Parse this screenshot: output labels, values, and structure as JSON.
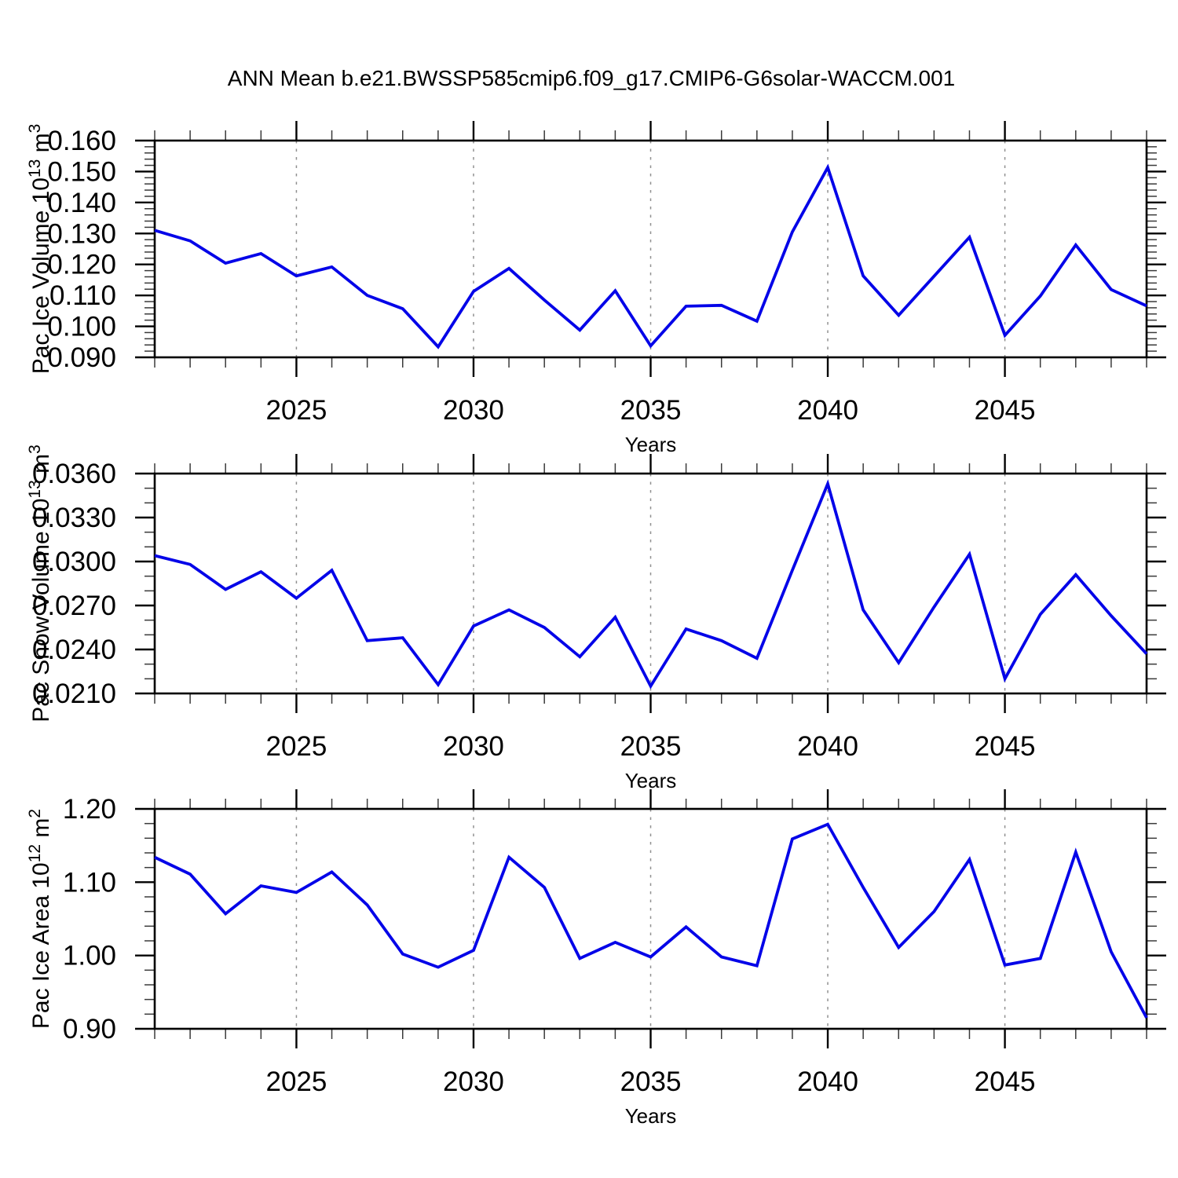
{
  "page": {
    "title": "ANN Mean b.e21.BWSSP585cmip6.f09_g17.CMIP6-G6solar-WACCM.001",
    "background_color": "#ffffff",
    "line_color": "#0404e8",
    "grid_color": "#909090",
    "axis_color": "#000000",
    "minor_tick_color": "#3a3a3a"
  },
  "chart_data": [
    {
      "type": "line",
      "ylabel_pre": "Pac Ice Volume 10",
      "ylabel_sup1": "13",
      "ylabel_mid": " m",
      "ylabel_sup2": "3",
      "xlabel": "Years",
      "x": [
        2021,
        2022,
        2023,
        2024,
        2025,
        2026,
        2027,
        2028,
        2029,
        2030,
        2031,
        2032,
        2033,
        2034,
        2035,
        2036,
        2037,
        2038,
        2039,
        2040,
        2041,
        2042,
        2043,
        2044,
        2045,
        2046,
        2047,
        2048,
        2049
      ],
      "values": [
        0.131,
        0.1276,
        0.1204,
        0.1235,
        0.1163,
        0.1192,
        0.11,
        0.1057,
        0.0934,
        0.1113,
        0.1187,
        0.1085,
        0.0988,
        0.1115,
        0.0937,
        0.1065,
        0.1068,
        0.1017,
        0.1305,
        0.1513,
        0.1163,
        0.1036,
        0.1162,
        0.1288,
        0.0971,
        0.1098,
        0.1263,
        0.1119,
        0.1066
      ],
      "xlim": [
        2021,
        2049
      ],
      "ylim": [
        0.09,
        0.16
      ],
      "xticks": [
        2025,
        2030,
        2035,
        2040,
        2045
      ],
      "xtick_labels": [
        "2025",
        "2030",
        "2035",
        "2040",
        "2045"
      ],
      "x_minor_step": 1,
      "ytick_values": [
        0.16,
        0.15,
        0.14,
        0.13,
        0.12,
        0.11,
        0.1,
        0.09
      ],
      "ytick_labels": [
        "0.160",
        "0.150",
        "0.140",
        "0.130",
        "0.120",
        "0.110",
        "0.100",
        "0.090"
      ],
      "y_minor_step": 0.002,
      "grid": "dashed-vertical-at-major-xticks",
      "legend": null
    },
    {
      "type": "line",
      "ylabel_pre": "Pac Snow Volume 10",
      "ylabel_sup1": "13",
      "ylabel_mid": " m",
      "ylabel_sup2": "3",
      "xlabel": "Years",
      "x": [
        2021,
        2022,
        2023,
        2024,
        2025,
        2026,
        2027,
        2028,
        2029,
        2030,
        2031,
        2032,
        2033,
        2034,
        2035,
        2036,
        2037,
        2038,
        2039,
        2040,
        2041,
        2042,
        2043,
        2044,
        2045,
        2046,
        2047,
        2048,
        2049
      ],
      "values": [
        0.0304,
        0.0298,
        0.0281,
        0.0293,
        0.0275,
        0.0294,
        0.0246,
        0.0248,
        0.0216,
        0.0256,
        0.0267,
        0.0255,
        0.0235,
        0.0262,
        0.0215,
        0.0254,
        0.0246,
        0.0234,
        0.0294,
        0.0353,
        0.0267,
        0.0231,
        0.0269,
        0.0305,
        0.022,
        0.0264,
        0.0291,
        0.0263,
        0.0237
      ],
      "xlim": [
        2021,
        2049
      ],
      "ylim": [
        0.021,
        0.036
      ],
      "xticks": [
        2025,
        2030,
        2035,
        2040,
        2045
      ],
      "xtick_labels": [
        "2025",
        "2030",
        "2035",
        "2040",
        "2045"
      ],
      "x_minor_step": 1,
      "ytick_values": [
        0.036,
        0.033,
        0.03,
        0.027,
        0.024,
        0.021
      ],
      "ytick_labels": [
        "0.0360",
        "0.0330",
        "0.0300",
        "0.0270",
        "0.0240",
        "0.0210"
      ],
      "y_minor_step": 0.001,
      "grid": "dashed-vertical-at-major-xticks",
      "legend": null
    },
    {
      "type": "line",
      "ylabel_pre": "Pac Ice Area 10",
      "ylabel_sup1": "12",
      "ylabel_mid": " m",
      "ylabel_sup2": "2",
      "xlabel": "Years",
      "x": [
        2021,
        2022,
        2023,
        2024,
        2025,
        2026,
        2027,
        2028,
        2029,
        2030,
        2031,
        2032,
        2033,
        2034,
        2035,
        2036,
        2037,
        2038,
        2039,
        2040,
        2041,
        2042,
        2043,
        2044,
        2045,
        2046,
        2047,
        2048,
        2049
      ],
      "values": [
        1.134,
        1.111,
        1.057,
        1.095,
        1.086,
        1.114,
        1.069,
        1.002,
        0.984,
        1.007,
        1.134,
        1.093,
        0.996,
        1.018,
        0.998,
        1.039,
        0.998,
        0.986,
        1.159,
        1.179,
        1.093,
        1.011,
        1.06,
        1.131,
        0.987,
        0.996,
        1.141,
        1.005,
        0.915
      ],
      "xlim": [
        2021,
        2049
      ],
      "ylim": [
        0.9,
        1.2
      ],
      "xticks": [
        2025,
        2030,
        2035,
        2040,
        2045
      ],
      "xtick_labels": [
        "2025",
        "2030",
        "2035",
        "2040",
        "2045"
      ],
      "x_minor_step": 1,
      "ytick_values": [
        1.2,
        1.1,
        1.0,
        0.9
      ],
      "ytick_labels": [
        "1.20",
        "1.10",
        "1.00",
        "0.90"
      ],
      "y_minor_step": 0.02,
      "grid": "dashed-vertical-at-major-xticks",
      "legend": null
    }
  ]
}
